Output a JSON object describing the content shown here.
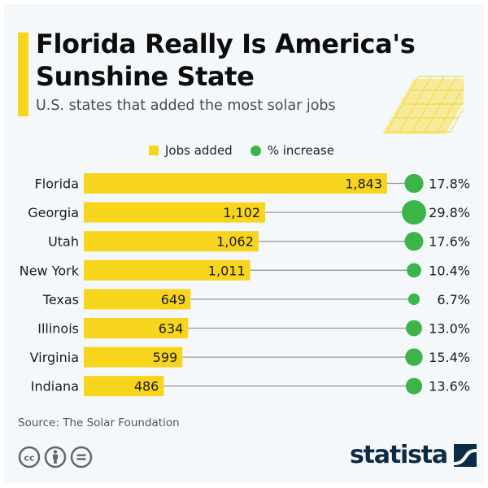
{
  "header": {
    "title": "Florida Really Is America's Sunshine State",
    "subtitle": "U.S. states that added the most solar jobs"
  },
  "legend": {
    "items": [
      {
        "label": "Jobs added",
        "shape": "square",
        "color": "#f7d51d"
      },
      {
        "label": "% increase",
        "shape": "circle",
        "color": "#3cb44a"
      }
    ]
  },
  "chart_data": {
    "type": "bar",
    "title": "Florida Really Is America's Sunshine State",
    "subtitle": "U.S. states that added the most solar jobs",
    "categories": [
      "Florida",
      "Georgia",
      "Utah",
      "New York",
      "Texas",
      "Illinois",
      "Virginia",
      "Indiana"
    ],
    "series": [
      {
        "name": "Jobs added",
        "type": "bar",
        "color": "#f7d51d",
        "values": [
          1843,
          1102,
          1062,
          1011,
          649,
          634,
          599,
          486
        ],
        "labels": [
          "1,843",
          "1,102",
          "1,062",
          "1,011",
          "649",
          "634",
          "599",
          "486"
        ]
      },
      {
        "name": "% increase",
        "type": "bubble",
        "color": "#3cb44a",
        "values": [
          17.8,
          29.8,
          17.6,
          10.4,
          6.7,
          13.0,
          15.4,
          13.6
        ],
        "labels": [
          "17.8%",
          "29.8%",
          "17.6%",
          "10.4%",
          "6.7%",
          "13.0%",
          "15.4%",
          "13.6%"
        ]
      }
    ],
    "orientation": "horizontal",
    "xlabel": "",
    "ylabel": "",
    "xlim": [
      0,
      1843
    ],
    "grid": false,
    "legend_position": "top-center"
  },
  "footer": {
    "source": "Source: The Solar Foundation",
    "license_icons": [
      "cc-icon",
      "attribution-icon",
      "no-derivatives-icon"
    ],
    "brand": "statista"
  },
  "colors": {
    "bar": "#f7d51d",
    "bubble": "#3cb44a",
    "connector": "#9a9a9a",
    "brand": "#0e2b45",
    "background": "#f5f8fb"
  }
}
